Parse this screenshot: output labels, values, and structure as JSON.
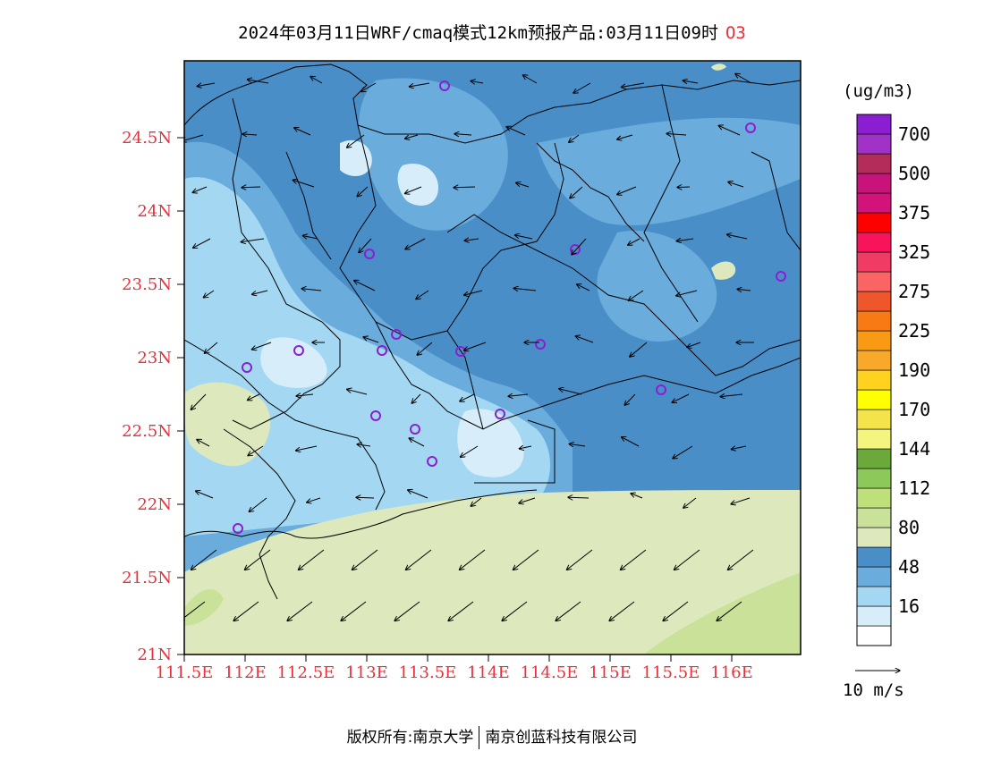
{
  "title": {
    "text": "2024年03月11日WRF/cmaq模式12km预报产品:03月11日09时",
    "pollutant": "O3"
  },
  "map": {
    "lat_labels": [
      "24.5N",
      "24N",
      "23.5N",
      "23N",
      "22.5N",
      "22N",
      "21.5N",
      "21N"
    ],
    "lon_labels": [
      "111.5E",
      "112E",
      "112.5E",
      "113E",
      "113.5E",
      "114E",
      "114.5E",
      "115E",
      "115.5E",
      "116E"
    ],
    "wind_reference": {
      "label": "10 m/s"
    }
  },
  "colorbar": {
    "unit": "(ug/m3)",
    "labels": [
      "700",
      "500",
      "375",
      "325",
      "275",
      "225",
      "190",
      "170",
      "144",
      "112",
      "80",
      "48",
      "16"
    ],
    "colors": [
      "#ffffff",
      "#d7eefa",
      "#a4d8f2",
      "#6aacdc",
      "#4a8ec8",
      "#dde9bd",
      "#c9e198",
      "#bde07a",
      "#8dc95a",
      "#6aa93a",
      "#f4f57f",
      "#f4e34a",
      "#ffff00",
      "#ffd21f",
      "#f8a92c",
      "#f89a14",
      "#f87a14",
      "#f0562c",
      "#fa6464",
      "#f03c64",
      "#f8145a",
      "#ff0000",
      "#d2147a",
      "#c8147a",
      "#b42d5a",
      "#a032c8",
      "#8c1ed2"
    ]
  },
  "copyright": {
    "left": "版权所有:南京大学",
    "right": "南京创蓝科技有限公司"
  }
}
